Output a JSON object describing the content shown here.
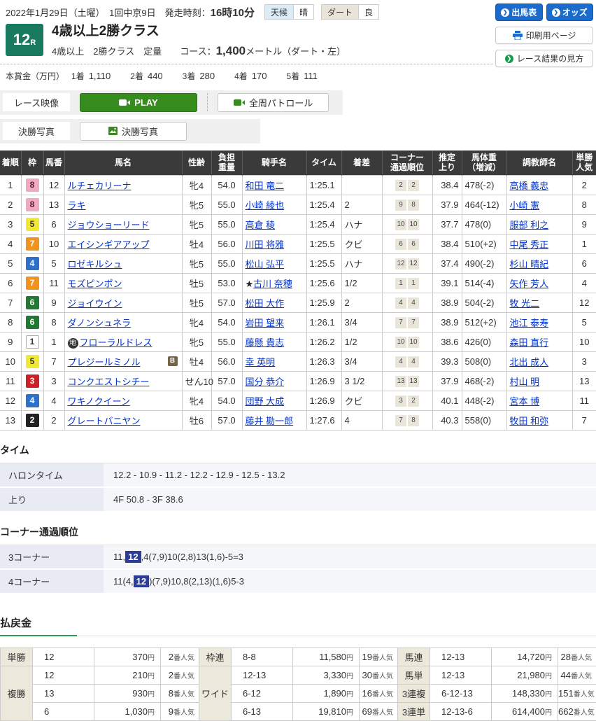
{
  "page": {
    "date_line": "2022年1月29日（土曜）　1回中京9日",
    "start_label": "発走時刻：",
    "start_time": "16時10分",
    "weather_label": "天候",
    "weather_value": "晴",
    "track_label": "ダート",
    "track_value": "良"
  },
  "actions": {
    "entries": "出馬表",
    "odds": "オッズ",
    "print": "印刷用ページ",
    "howto": "レース結果の見方"
  },
  "race": {
    "number": "12",
    "number_suffix": "R",
    "title": "4歳以上2勝クラス",
    "conditions": "4歳以上　2勝クラス　定量",
    "course_label": "コース：",
    "course_distance": "1,400",
    "course_unit": "メートル（ダート・左）",
    "prize_label": "本賞金（万円）",
    "prizes": [
      {
        "place": "1着",
        "amount": "1,110"
      },
      {
        "place": "2着",
        "amount": "440"
      },
      {
        "place": "3着",
        "amount": "280"
      },
      {
        "place": "4着",
        "amount": "170"
      },
      {
        "place": "5着",
        "amount": "111"
      }
    ]
  },
  "media": {
    "video_label": "レース映像",
    "play_label": "PLAY",
    "patrol_label": "全周パトロール",
    "photo_label": "決勝写真",
    "photo_button_label": "決勝写真"
  },
  "results": {
    "headers": [
      "着順",
      "枠",
      "馬番",
      "馬名",
      "性齢",
      "負担\n重量",
      "騎手名",
      "タイム",
      "着差",
      "コーナー\n通過順位",
      "推定\n上り",
      "馬体重\n（増減）",
      "調教師名",
      "単勝\n人気"
    ],
    "rows": [
      {
        "order": "1",
        "frame": 8,
        "number": "12",
        "name": "ルチェカリーナ",
        "sex_age": "牝4",
        "weight": "54.0",
        "jockey": "和田 竜二",
        "time": "1:25.1",
        "margin": "",
        "corners": [
          "2",
          "2"
        ],
        "last_3f": "38.4",
        "horse_weight": "478(-2)",
        "trainer": "高橋 義忠",
        "popularity": "2"
      },
      {
        "order": "2",
        "frame": 8,
        "number": "13",
        "name": "ラキ",
        "sex_age": "牝5",
        "weight": "55.0",
        "jockey": "小崎 綾也",
        "time": "1:25.4",
        "margin": "2",
        "corners": [
          "9",
          "8"
        ],
        "last_3f": "37.9",
        "horse_weight": "464(-12)",
        "trainer": "小崎 憲",
        "popularity": "8"
      },
      {
        "order": "3",
        "frame": 5,
        "number": "6",
        "name": "ジョウショーリード",
        "sex_age": "牝5",
        "weight": "55.0",
        "jockey": "高倉 稜",
        "time": "1:25.4",
        "margin": "ハナ",
        "corners": [
          "10",
          "10"
        ],
        "last_3f": "37.7",
        "horse_weight": "478(0)",
        "trainer": "服部 利之",
        "popularity": "9"
      },
      {
        "order": "4",
        "frame": 7,
        "number": "10",
        "name": "エイシンギアアップ",
        "sex_age": "牡4",
        "weight": "56.0",
        "jockey": "川田 将雅",
        "time": "1:25.5",
        "margin": "クビ",
        "corners": [
          "6",
          "6"
        ],
        "last_3f": "38.4",
        "horse_weight": "510(+2)",
        "trainer": "中尾 秀正",
        "popularity": "1"
      },
      {
        "order": "5",
        "frame": 4,
        "number": "5",
        "name": "ロゼキルシュ",
        "sex_age": "牝5",
        "weight": "55.0",
        "jockey": "松山 弘平",
        "time": "1:25.5",
        "margin": "ハナ",
        "corners": [
          "12",
          "12"
        ],
        "last_3f": "37.4",
        "horse_weight": "490(-2)",
        "trainer": "杉山 晴紀",
        "popularity": "6"
      },
      {
        "order": "6",
        "frame": 7,
        "number": "11",
        "name": "モズピンポン",
        "sex_age": "牡5",
        "weight": "53.0",
        "jockey_mark": "★",
        "jockey": "古川 奈穂",
        "time": "1:25.6",
        "margin": "1/2",
        "corners": [
          "1",
          "1"
        ],
        "last_3f": "39.1",
        "horse_weight": "514(-4)",
        "trainer": "矢作 芳人",
        "popularity": "4"
      },
      {
        "order": "7",
        "frame": 6,
        "number": "9",
        "name": "ジョイウイン",
        "sex_age": "牡5",
        "weight": "57.0",
        "jockey": "松田 大作",
        "time": "1:25.9",
        "margin": "2",
        "corners": [
          "4",
          "4"
        ],
        "last_3f": "38.9",
        "horse_weight": "504(-2)",
        "trainer": "牧 光二",
        "popularity": "12"
      },
      {
        "order": "8",
        "frame": 6,
        "number": "8",
        "name": "ダノンシュネラ",
        "sex_age": "牝4",
        "weight": "54.0",
        "jockey": "岩田 望来",
        "time": "1:26.1",
        "margin": "3/4",
        "corners": [
          "7",
          "7"
        ],
        "last_3f": "38.9",
        "horse_weight": "512(+2)",
        "trainer": "池江 泰寿",
        "popularity": "5"
      },
      {
        "order": "9",
        "frame": 1,
        "number": "1",
        "name_mark": "地",
        "name": "フローラルドレス",
        "sex_age": "牝5",
        "weight": "55.0",
        "jockey": "藤懸 貴志",
        "time": "1:26.2",
        "margin": "1/2",
        "corners": [
          "10",
          "10"
        ],
        "last_3f": "38.6",
        "horse_weight": "426(0)",
        "trainer": "森田 直行",
        "popularity": "10"
      },
      {
        "order": "10",
        "frame": 5,
        "number": "7",
        "name": "プレジールミノル",
        "name_badge": "B",
        "sex_age": "牡4",
        "weight": "56.0",
        "jockey": "幸 英明",
        "time": "1:26.3",
        "margin": "3/4",
        "corners": [
          "4",
          "4"
        ],
        "last_3f": "39.3",
        "horse_weight": "508(0)",
        "trainer": "北出 成人",
        "popularity": "3"
      },
      {
        "order": "11",
        "frame": 3,
        "number": "3",
        "name": "コンクエストシチー",
        "sex_age": "せん10",
        "weight": "57.0",
        "jockey": "国分 恭介",
        "time": "1:26.9",
        "margin": "3 1/2",
        "corners": [
          "13",
          "13"
        ],
        "last_3f": "37.9",
        "horse_weight": "468(-2)",
        "trainer": "村山 明",
        "popularity": "13"
      },
      {
        "order": "12",
        "frame": 4,
        "number": "4",
        "name": "ワキノクイーン",
        "sex_age": "牝4",
        "weight": "54.0",
        "jockey": "団野 大成",
        "time": "1:26.9",
        "margin": "クビ",
        "corners": [
          "3",
          "2"
        ],
        "last_3f": "40.1",
        "horse_weight": "448(-2)",
        "trainer": "宮本 博",
        "popularity": "11"
      },
      {
        "order": "13",
        "frame": 2,
        "number": "2",
        "name": "グレートバニヤン",
        "sex_age": "牡6",
        "weight": "57.0",
        "jockey": "藤井 勘一郎",
        "time": "1:27.6",
        "margin": "4",
        "corners": [
          "7",
          "8"
        ],
        "last_3f": "40.3",
        "horse_weight": "558(0)",
        "trainer": "牧田 和弥",
        "popularity": "7"
      }
    ]
  },
  "time_section": {
    "title": "タイム",
    "rows": [
      {
        "label": "ハロンタイム",
        "value": "12.2 - 10.9 - 11.2 - 12.2 - 12.9 - 12.5 - 13.2"
      },
      {
        "label": "上り",
        "value": "4F 50.8 - 3F 38.6"
      }
    ]
  },
  "corner_section": {
    "title": "コーナー通過順位",
    "rows": [
      {
        "label": "3コーナー",
        "before": "11,",
        "highlight": "12",
        "after": ",4(7,9)10(2,8)13(1,6)-5=3"
      },
      {
        "label": "4コーナー",
        "before": "11(4,",
        "highlight": "12",
        "after": ")(7,9)10,8(2,13)(1,6)5-3"
      }
    ]
  },
  "payout": {
    "title": "払戻金",
    "yen_suffix": "円",
    "pop_suffix": "番人気",
    "groups": [
      {
        "rows": [
          {
            "type": "単勝",
            "combo": "12",
            "amount": "370",
            "pop": "2"
          },
          {
            "type": "複勝",
            "span": 3,
            "combo": "12",
            "amount": "210",
            "pop": "2"
          },
          {
            "combo": "13",
            "amount": "930",
            "pop": "8"
          },
          {
            "combo": "6",
            "amount": "1,030",
            "pop": "9"
          }
        ]
      },
      {
        "rows": [
          {
            "type": "枠連",
            "combo": "8-8",
            "amount": "11,580",
            "pop": "19"
          },
          {
            "type": "ワイド",
            "span": 3,
            "combo": "12-13",
            "amount": "3,330",
            "pop": "30"
          },
          {
            "combo": "6-12",
            "amount": "1,890",
            "pop": "16"
          },
          {
            "combo": "6-13",
            "amount": "19,810",
            "pop": "69"
          }
        ]
      },
      {
        "rows": [
          {
            "type": "馬連",
            "combo": "12-13",
            "amount": "14,720",
            "pop": "28"
          },
          {
            "type": "馬単",
            "combo": "12-13",
            "amount": "21,980",
            "pop": "44"
          },
          {
            "type": "3連複",
            "combo": "6-12-13",
            "amount": "148,330",
            "pop": "151"
          },
          {
            "type": "3連単",
            "combo": "12-13-6",
            "amount": "614,400",
            "pop": "662"
          }
        ]
      }
    ]
  },
  "colors": {
    "accent_green": "#1a7a60",
    "button_blue": "#1a6bcc",
    "play_green": "#378c1e",
    "highlight_navy": "#2b3d96",
    "header_dark": "#3a3a3a"
  }
}
